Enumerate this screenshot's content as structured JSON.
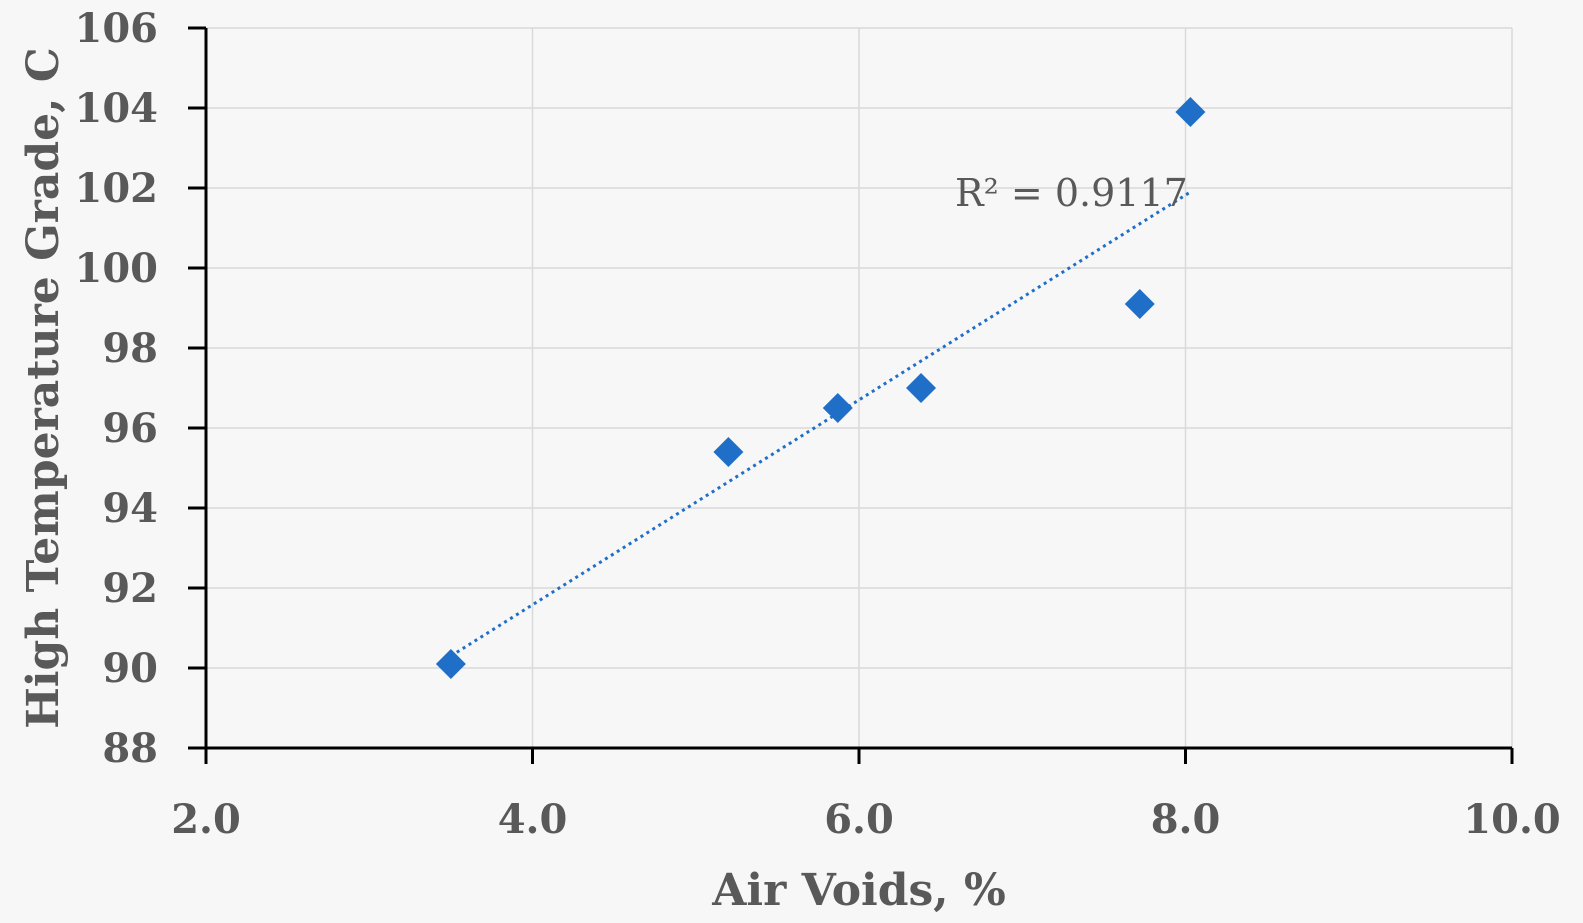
{
  "chart_data": {
    "type": "scatter",
    "xlabel": "Air Voids, %",
    "ylabel": "High Temperature Grade, C",
    "xlim": [
      2.0,
      10.0
    ],
    "ylim": [
      88,
      106
    ],
    "x_ticks": [
      "2.0",
      "4.0",
      "6.0",
      "8.0",
      "10.0"
    ],
    "y_ticks": [
      "88",
      "90",
      "92",
      "94",
      "96",
      "98",
      "100",
      "102",
      "104",
      "106"
    ],
    "grid": true,
    "series": [
      {
        "marker": "diamond",
        "color": "#1f6fc8",
        "points": [
          {
            "x": 3.5,
            "y": 90.1
          },
          {
            "x": 5.2,
            "y": 95.4
          },
          {
            "x": 5.87,
            "y": 96.5
          },
          {
            "x": 6.38,
            "y": 97.0
          },
          {
            "x": 7.72,
            "y": 99.1
          },
          {
            "x": 8.03,
            "y": 103.9
          }
        ]
      }
    ],
    "trendline": {
      "type": "linear",
      "style": "dotted",
      "color": "#1f6fc8",
      "from": {
        "x": 3.5,
        "y": 90.3
      },
      "to": {
        "x": 8.03,
        "y": 101.9
      },
      "r2_label": "R² = 0.9117"
    }
  }
}
